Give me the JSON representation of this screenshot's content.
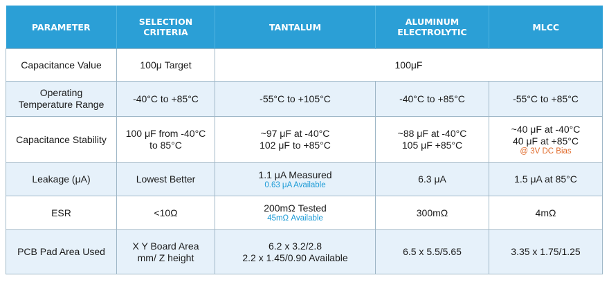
{
  "table": {
    "headers": [
      "PARAMETER",
      "SELECTION CRITERIA",
      "TANTALUM",
      "ALUMINUM ELECTROLYTIC",
      "MLCC"
    ],
    "rows": [
      {
        "parameter": [
          "Capacitance Value"
        ],
        "criteria": [
          "100μ Target"
        ],
        "merged": [
          "100μF"
        ]
      },
      {
        "parameter": [
          "Operating",
          "Temperature Range"
        ],
        "criteria": [
          "-40°C to +85°C"
        ],
        "tantalum": [
          "-55°C to +105°C"
        ],
        "aluminum": [
          "-40°C to +85°C"
        ],
        "mlcc": [
          "-55°C to +85°C"
        ]
      },
      {
        "parameter": [
          "Capacitance Stability"
        ],
        "criteria": [
          "100 μF from -40°C",
          "to 85°C"
        ],
        "tantalum": [
          "~97 μF at -40°C",
          "102 μF to +85°C"
        ],
        "aluminum": [
          "~88 μF at -40°C",
          "105 μF +85°C"
        ],
        "mlcc": [
          "~40 μF at -40°C",
          "40 μF at +85°C"
        ],
        "mlcc_note": "@ 3V DC Bias"
      },
      {
        "parameter": [
          "Leakage (μA)"
        ],
        "criteria": [
          "Lowest Better"
        ],
        "tantalum": [
          "1.1 μA Measured"
        ],
        "tantalum_note": "0.63 μA Available",
        "aluminum": [
          "6.3 μA"
        ],
        "mlcc": [
          "1.5 μA at 85°C"
        ]
      },
      {
        "parameter": [
          "ESR"
        ],
        "criteria": [
          "<10Ω"
        ],
        "tantalum": [
          "200mΩ Tested"
        ],
        "tantalum_note": "45mΩ Available",
        "aluminum": [
          "300mΩ"
        ],
        "mlcc": [
          "4mΩ"
        ]
      },
      {
        "parameter": [
          "PCB Pad Area Used"
        ],
        "criteria": [
          "X Y Board Area",
          "mm/ Z height"
        ],
        "tantalum": [
          "6.2 x 3.2/2.8",
          "2.2 x 1.45/0.90 Available"
        ],
        "aluminum": [
          "6.5 x 5.5/5.65"
        ],
        "mlcc": [
          "3.35 x 1.75/1.25"
        ]
      }
    ]
  },
  "colors": {
    "header_bg": "#2b9fd6",
    "alt_row_bg": "#e6f1fa",
    "note_blue": "#1a9ad6",
    "note_orange": "#e06a2a"
  }
}
